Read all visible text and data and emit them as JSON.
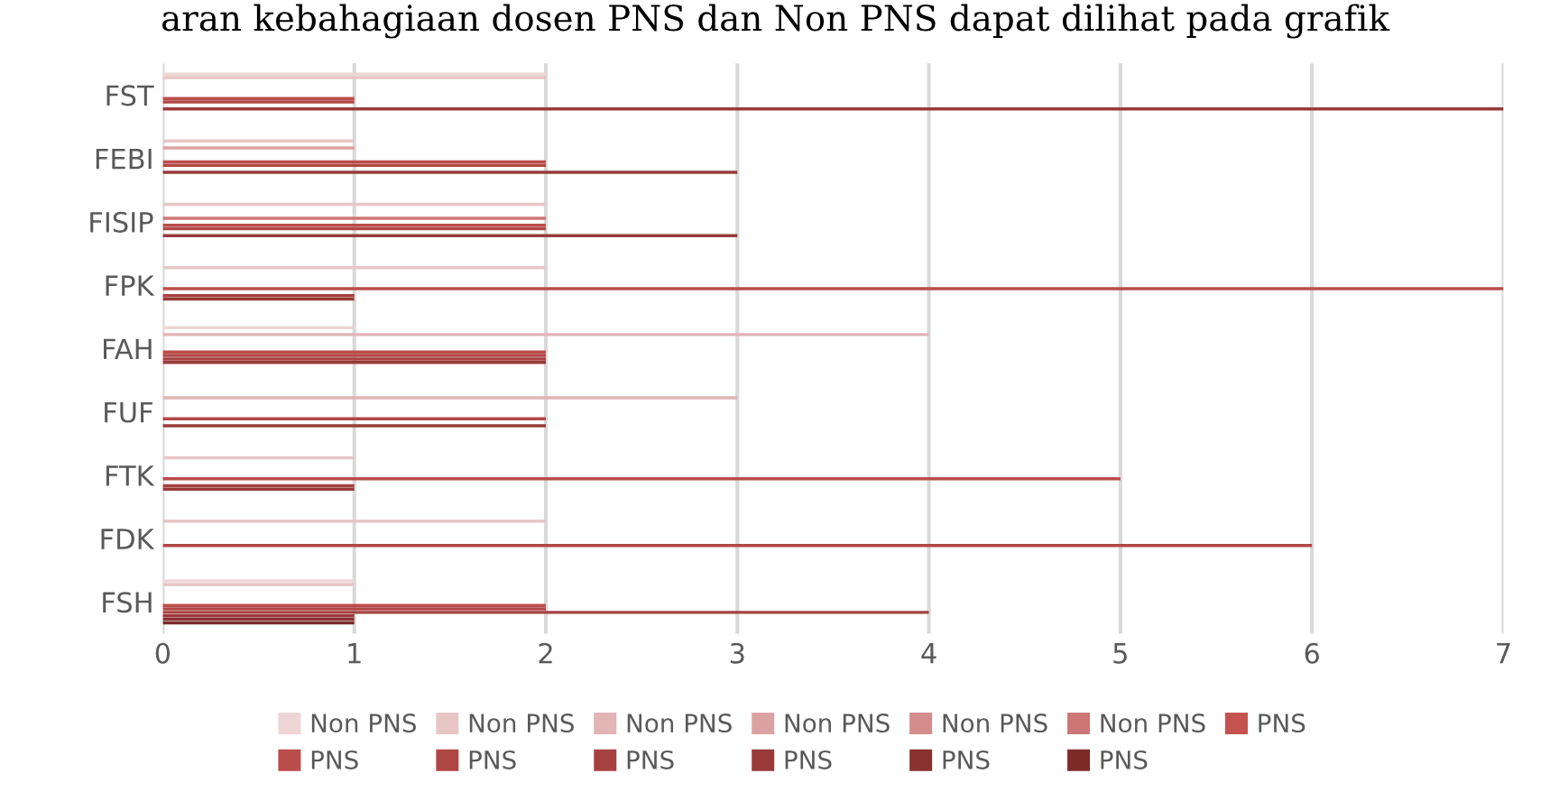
{
  "chart_data": {
    "type": "bar",
    "orientation": "horizontal",
    "annotations": [
      "aran kebahagiaan dosen PNS dan Non PNS dapat dilihat pada grafik"
    ],
    "categories": [
      "FST",
      "FEBI",
      "FISIP",
      "FPK",
      "FAH",
      "FUF",
      "FTK",
      "FDK",
      "FSH"
    ],
    "xlim": [
      0,
      7
    ],
    "xticks": [
      0,
      1,
      2,
      3,
      4,
      5,
      6,
      7
    ],
    "grid": "x",
    "legend": "bottom",
    "series": [
      {
        "name": "Non PNS",
        "color": "#eed6d6",
        "values": [
          2,
          0,
          0,
          0,
          1,
          0,
          0,
          0,
          1
        ]
      },
      {
        "name": "Non PNS",
        "color": "#e8c6c6",
        "values": [
          2,
          1,
          2,
          2,
          0,
          0,
          1,
          2,
          1
        ]
      },
      {
        "name": "Non PNS",
        "color": "#e2b4b4",
        "values": [
          0,
          0,
          0,
          0,
          4,
          3,
          0,
          0,
          0
        ]
      },
      {
        "name": "Non PNS",
        "color": "#dca2a2",
        "values": [
          0,
          1,
          0,
          0,
          0,
          0,
          0,
          0,
          0
        ]
      },
      {
        "name": "Non PNS",
        "color": "#d48c8c",
        "values": [
          0,
          0,
          0,
          0,
          0,
          0,
          0,
          0,
          0
        ]
      },
      {
        "name": "Non PNS",
        "color": "#cc7676",
        "values": [
          0,
          0,
          2,
          0,
          0,
          0,
          0,
          0,
          0
        ]
      },
      {
        "name": "PNS",
        "color": "#c4534f",
        "values": [
          0,
          0,
          0,
          0,
          0,
          0,
          0,
          0,
          0
        ]
      },
      {
        "name": "PNS",
        "color": "#ba4d4b",
        "values": [
          1,
          2,
          2,
          7,
          2,
          0,
          5,
          0,
          2
        ]
      },
      {
        "name": "PNS",
        "color": "#b04745",
        "values": [
          1,
          2,
          2,
          0,
          2,
          2,
          0,
          6,
          2
        ]
      },
      {
        "name": "PNS",
        "color": "#a5423f",
        "values": [
          0,
          0,
          0,
          1,
          2,
          0,
          1,
          0,
          4
        ]
      },
      {
        "name": "PNS",
        "color": "#983b39",
        "values": [
          7,
          3,
          3,
          1,
          2,
          2,
          1,
          0,
          1
        ]
      },
      {
        "name": "PNS",
        "color": "#893230",
        "values": [
          0,
          0,
          0,
          0,
          0,
          0,
          0,
          0,
          1
        ]
      },
      {
        "name": "PNS",
        "color": "#7d2b29",
        "values": [
          0,
          0,
          0,
          0,
          0,
          0,
          0,
          0,
          1
        ]
      }
    ]
  }
}
